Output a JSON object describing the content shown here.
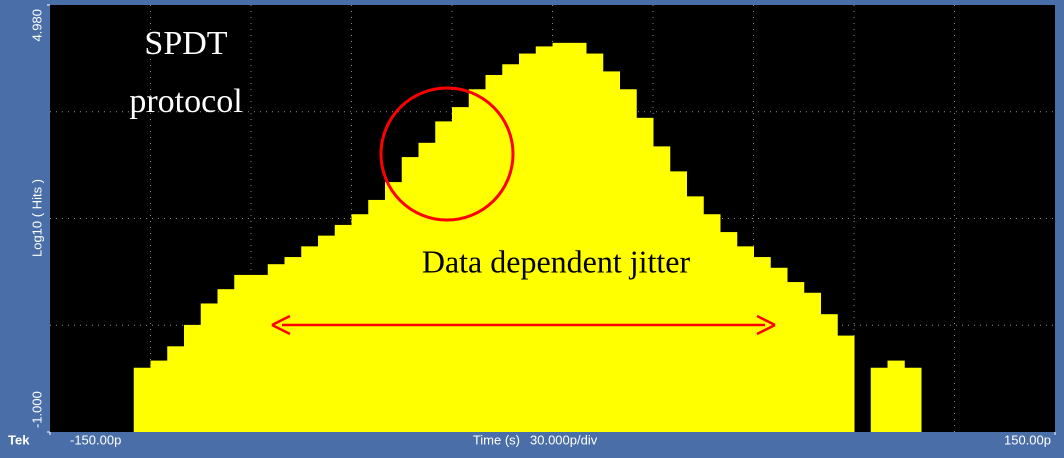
{
  "chart_data": {
    "type": "histogram",
    "brand": "Tek",
    "xlabel": "Time (s)",
    "scale_label": "30.000p/div",
    "ylabel": "Log10 ( Hits )",
    "xlim": [
      -150,
      150
    ],
    "ylim": [
      -1,
      4.98
    ],
    "xticks": [
      {
        "value": -150,
        "label": "-150.00p"
      },
      {
        "value": 150,
        "label": "150.00p"
      }
    ],
    "yticks": [
      {
        "value": 4.98,
        "label": "4.980"
      },
      {
        "value": -1,
        "label": "-1.000"
      }
    ],
    "bins": [
      -150,
      -145,
      -140,
      -135,
      -130,
      -125,
      -120,
      -115,
      -110,
      -105,
      -100,
      -95,
      -90,
      -85,
      -80,
      -75,
      -70,
      -65,
      -60,
      -55,
      -50,
      -45,
      -40,
      -35,
      -30,
      -25,
      -20,
      -15,
      -10,
      -5,
      0,
      5,
      10,
      15,
      20,
      25,
      30,
      35,
      40,
      45,
      50,
      55,
      60,
      65,
      70,
      75,
      80,
      85,
      90,
      95,
      100,
      105,
      110,
      115,
      120,
      125,
      130,
      135,
      140,
      145,
      150
    ],
    "values": [
      null,
      null,
      null,
      null,
      null,
      -0.1,
      0,
      0.2,
      0.5,
      0.8,
      1.0,
      1.2,
      1.2,
      1.35,
      1.45,
      1.6,
      1.75,
      1.9,
      2.05,
      2.25,
      2.5,
      2.85,
      3.05,
      3.35,
      3.55,
      3.8,
      4.0,
      4.15,
      4.3,
      4.4,
      4.45,
      4.45,
      4.3,
      4.05,
      3.8,
      3.4,
      3.0,
      2.65,
      2.3,
      2.05,
      1.8,
      1.6,
      1.45,
      1.3,
      1.1,
      0.95,
      0.65,
      0.35,
      null,
      -0.1,
      0,
      -0.1,
      null,
      null,
      null,
      null,
      null,
      null,
      null,
      null
    ],
    "color": "#ffff00",
    "grid": true,
    "annotations": [
      "SPDT",
      "protocol",
      "Data dependent jitter"
    ]
  }
}
